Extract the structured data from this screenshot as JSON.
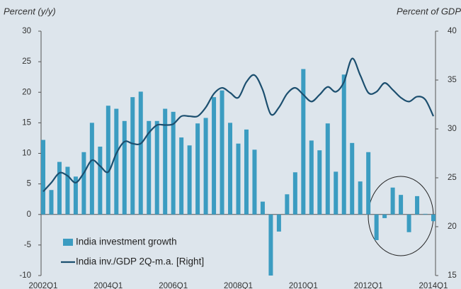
{
  "chart_data": {
    "type": "bar",
    "y_label": "Percent (y/y)",
    "y2_label": "Percent of GDP",
    "categories": [
      "2002Q1",
      null,
      null,
      null,
      null,
      null,
      null,
      null,
      "2004Q1",
      null,
      null,
      null,
      null,
      null,
      null,
      null,
      "2006Q1",
      null,
      null,
      null,
      null,
      null,
      null,
      null,
      "2008Q1",
      null,
      null,
      null,
      null,
      null,
      null,
      null,
      "2010Q1",
      null,
      null,
      null,
      null,
      null,
      null,
      null,
      "2012Q1",
      null,
      null,
      null,
      null,
      null,
      null,
      null,
      "2014Q1"
    ],
    "series": [
      {
        "name": "India investment growth",
        "type": "bar",
        "color": "#3b9cc1",
        "values": [
          12.2,
          4,
          8.6,
          7.8,
          6.2,
          10.2,
          15,
          11.1,
          17.8,
          17.3,
          15.3,
          19.2,
          20.1,
          15.3,
          15.3,
          17.3,
          16.8,
          12.6,
          11.3,
          14.9,
          15.8,
          19.2,
          20.3,
          15,
          11.6,
          13.9,
          10.6,
          2.1,
          -10,
          -2.8,
          3.3,
          6.9,
          23.8,
          12.1,
          10.5,
          14.9,
          7,
          22.9,
          11.7,
          5.4,
          10.2,
          -4.2,
          -0.6,
          4.4,
          3.2,
          -2.9,
          3,
          0.1,
          -1.1
        ]
      },
      {
        "name": "India inv./GDP 2Q-m.a. [Right]",
        "type": "line",
        "axis": "y2",
        "color": "#1c4f6f",
        "values": [
          23.6,
          24.5,
          25.5,
          25.2,
          24.5,
          25.5,
          26.8,
          26.2,
          25.6,
          27.5,
          28.7,
          28.5,
          28.5,
          29.6,
          30.4,
          30.4,
          30.5,
          31.3,
          31.3,
          31.3,
          32.2,
          33.6,
          34.2,
          33.7,
          33.2,
          34.8,
          35.5,
          34,
          31.5,
          32.2,
          33.6,
          34.2,
          33.5,
          32.8,
          33.5,
          34.3,
          33.8,
          34.8,
          37.2,
          35.5,
          33.7,
          33.8,
          34.7,
          34,
          33.2,
          32.8,
          33.3,
          33,
          31.3
        ]
      }
    ],
    "ylim": [
      -10,
      30
    ],
    "yticks": [
      -10,
      -5,
      0,
      5,
      10,
      15,
      20,
      25,
      30
    ],
    "y2lim": [
      15,
      40
    ],
    "y2ticks": [
      15,
      20,
      25,
      30,
      35,
      40
    ]
  }
}
